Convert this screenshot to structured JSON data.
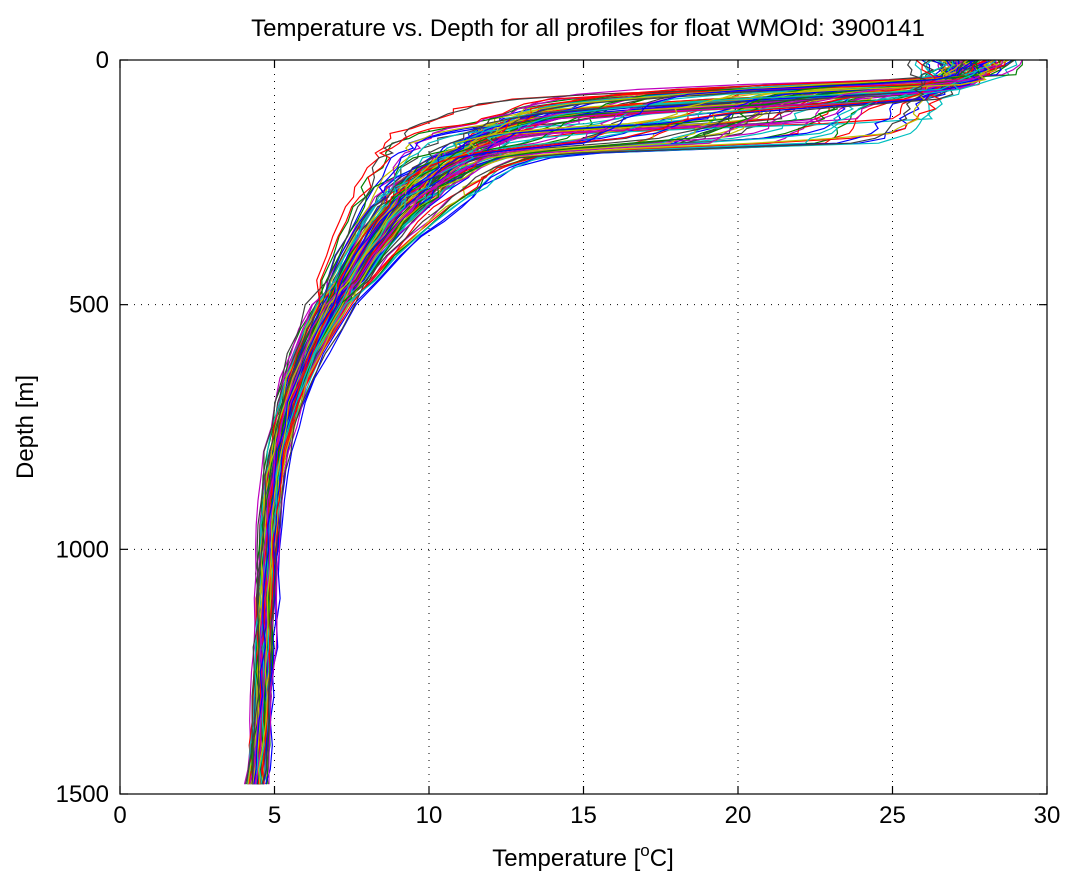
{
  "chart_data": {
    "type": "line",
    "title": "Temperature vs. Depth for all profiles for float WMOId: 3900141",
    "xlabel": "Temperature [",
    "xlabel_sup": "o",
    "xlabel_end": "C]",
    "ylabel": "Depth [m]",
    "xlim": [
      0,
      30
    ],
    "ylim": [
      0,
      1500
    ],
    "y_reversed": true,
    "grid": true,
    "x_ticks": [
      "0",
      "5",
      "10",
      "15",
      "20",
      "25",
      "30"
    ],
    "y_ticks": [
      "0",
      "500",
      "1000",
      "1500"
    ],
    "profile_count": 120,
    "depths": [
      0,
      10,
      20,
      30,
      40,
      50,
      60,
      70,
      80,
      90,
      100,
      110,
      120,
      130,
      140,
      150,
      160,
      170,
      180,
      190,
      200,
      220,
      240,
      260,
      280,
      300,
      330,
      360,
      400,
      450,
      500,
      550,
      600,
      650,
      700,
      750,
      800,
      850,
      900,
      950,
      1000,
      1050,
      1100,
      1150,
      1200,
      1250,
      1300,
      1350,
      1400,
      1450,
      1480
    ],
    "series": [
      {
        "temperature": [
          28.6,
          28.5,
          28.3,
          28.0,
          25.0,
          20.0,
          16.5,
          14.5,
          13.8,
          13.3,
          13.0,
          12.8,
          12.5,
          12.3,
          12.0,
          11.8,
          11.6,
          11.4,
          11.2,
          11.0,
          10.8,
          10.3,
          9.9,
          9.6,
          9.3,
          9.0,
          8.6,
          8.3,
          7.9,
          7.4,
          6.9,
          6.5,
          6.1,
          5.8,
          5.5,
          5.3,
          5.1,
          5.0,
          4.9,
          4.85,
          4.8,
          4.78,
          4.76,
          4.74,
          4.72,
          4.7,
          4.68,
          4.66,
          4.62,
          4.58,
          4.55
        ]
      },
      {
        "temperature": [
          27.6,
          27.5,
          27.4,
          27.3,
          27.2,
          27.0,
          26.5,
          25.0,
          21.0,
          17.0,
          14.5,
          13.5,
          13.0,
          12.7,
          12.4,
          12.2,
          12.0,
          11.8,
          11.6,
          11.4,
          11.2,
          10.7,
          10.2,
          9.8,
          9.5,
          9.2,
          8.8,
          8.4,
          8.0,
          7.5,
          7.0,
          6.6,
          6.2,
          5.9,
          5.6,
          5.4,
          5.2,
          5.05,
          4.95,
          4.9,
          4.85,
          4.82,
          4.8,
          4.78,
          4.75,
          4.72,
          4.7,
          4.68,
          4.64,
          4.6,
          4.57
        ]
      },
      {
        "temperature": [
          27.4,
          27.4,
          27.3,
          27.3,
          27.3,
          27.3,
          27.2,
          27.2,
          27.1,
          27.0,
          26.9,
          26.8,
          26.5,
          24.0,
          19.0,
          15.0,
          13.5,
          13.0,
          12.6,
          12.3,
          12.0,
          11.4,
          10.9,
          10.4,
          10.0,
          9.7,
          9.2,
          8.8,
          8.3,
          7.8,
          7.3,
          6.8,
          6.4,
          6.0,
          5.7,
          5.5,
          5.3,
          5.15,
          5.05,
          4.98,
          4.92,
          4.88,
          4.85,
          4.82,
          4.79,
          4.76,
          4.73,
          4.7,
          4.66,
          4.62,
          4.6
        ]
      },
      {
        "temperature": [
          27.0,
          27.0,
          27.0,
          26.9,
          26.9,
          26.9,
          26.8,
          26.8,
          26.8,
          26.7,
          26.7,
          26.6,
          26.5,
          26.3,
          26.0,
          25.5,
          24.0,
          21.0,
          17.5,
          14.5,
          13.0,
          12.0,
          11.4,
          10.8,
          10.3,
          9.9,
          9.4,
          9.0,
          8.5,
          8.0,
          7.4,
          6.9,
          6.5,
          6.1,
          5.8,
          5.55,
          5.35,
          5.2,
          5.1,
          5.0,
          4.95,
          4.9,
          4.86,
          4.82,
          4.78,
          4.75,
          4.72,
          4.68,
          4.62,
          4.56,
          4.52
        ]
      },
      {
        "temperature": [
          26.5,
          26.5,
          26.4,
          26.4,
          26.3,
          26.2,
          26.1,
          25.8,
          25.0,
          22.0,
          18.0,
          15.0,
          13.2,
          12.4,
          11.8,
          11.2,
          10.8,
          10.4,
          10.0,
          9.7,
          9.4,
          9.0,
          8.7,
          8.4,
          8.2,
          8.0,
          7.7,
          7.4,
          7.1,
          6.7,
          6.3,
          5.9,
          5.6,
          5.35,
          5.15,
          5.0,
          4.9,
          4.8,
          4.72,
          4.66,
          4.62,
          4.6,
          4.58,
          4.55,
          4.52,
          4.49,
          4.46,
          4.42,
          4.38,
          4.32,
          4.28
        ]
      },
      {
        "temperature": [
          28.0,
          28.0,
          27.9,
          27.8,
          27.6,
          27.3,
          26.5,
          23.0,
          18.0,
          15.5,
          14.5,
          14.0,
          13.6,
          13.2,
          12.9,
          12.6,
          12.4,
          12.2,
          12.0,
          11.8,
          11.6,
          11.1,
          10.6,
          10.2,
          9.8,
          9.5,
          9.1,
          8.7,
          8.2,
          7.7,
          7.2,
          6.8,
          6.3,
          6.0,
          5.7,
          5.45,
          5.25,
          5.1,
          5.0,
          4.93,
          4.88,
          4.84,
          4.81,
          4.78,
          4.75,
          4.72,
          4.69,
          4.66,
          4.62,
          4.58,
          4.54
        ]
      },
      {
        "temperature": [
          26.8,
          26.8,
          26.7,
          26.7,
          26.6,
          26.5,
          26.4,
          26.3,
          26.0,
          25.0,
          21.0,
          16.5,
          14.0,
          13.0,
          12.5,
          12.1,
          11.7,
          11.4,
          11.1,
          10.8,
          10.5,
          9.9,
          9.4,
          9.0,
          8.7,
          8.4,
          8.0,
          7.7,
          7.3,
          6.9,
          6.5,
          6.1,
          5.8,
          5.5,
          5.3,
          5.12,
          4.98,
          4.87,
          4.79,
          4.73,
          4.69,
          4.66,
          4.63,
          4.6,
          4.57,
          4.54,
          4.5,
          4.46,
          4.4,
          4.34,
          4.3
        ]
      },
      {
        "temperature": [
          27.9,
          27.8,
          27.6,
          27.5,
          27.3,
          26.0,
          20.0,
          15.0,
          12.5,
          11.5,
          10.8,
          10.3,
          9.9,
          9.6,
          9.3,
          9.1,
          8.9,
          8.7,
          8.6,
          8.5,
          8.4,
          8.2,
          8.0,
          7.9,
          7.8,
          7.6,
          7.4,
          7.2,
          6.9,
          6.6,
          6.2,
          5.9,
          5.6,
          5.35,
          5.15,
          5.0,
          4.88,
          4.78,
          4.7,
          4.65,
          4.62,
          4.6,
          4.58,
          4.56,
          4.53,
          4.5,
          4.46,
          4.42,
          4.36,
          4.3,
          4.25
        ]
      },
      {
        "temperature": [
          26.6,
          26.6,
          26.6,
          26.5,
          26.5,
          26.4,
          26.4,
          26.3,
          26.3,
          26.2,
          26.1,
          26.0,
          25.9,
          25.8,
          25.7,
          25.5,
          25.2,
          24.5,
          20.0,
          15.5,
          13.5,
          12.5,
          12.0,
          11.6,
          11.2,
          10.8,
          10.2,
          9.6,
          8.9,
          8.2,
          7.5,
          7.0,
          6.5,
          6.1,
          5.8,
          5.55,
          5.35,
          5.2,
          5.1,
          5.02,
          4.96,
          4.92,
          4.88,
          4.84,
          4.8,
          4.76,
          4.72,
          4.68,
          4.63,
          4.58,
          4.55
        ]
      },
      {
        "temperature": [
          29.0,
          28.9,
          28.6,
          28.2,
          27.5,
          24.0,
          19.0,
          16.0,
          14.8,
          14.2,
          13.8,
          13.4,
          13.1,
          12.8,
          12.5,
          12.2,
          11.9,
          11.6,
          11.3,
          11.0,
          10.7,
          10.1,
          9.6,
          9.2,
          8.9,
          8.6,
          8.2,
          7.9,
          7.5,
          7.1,
          6.7,
          6.3,
          5.95,
          5.65,
          5.42,
          5.25,
          5.1,
          4.98,
          4.89,
          4.82,
          4.77,
          4.74,
          4.71,
          4.68,
          4.65,
          4.62,
          4.59,
          4.55,
          4.5,
          4.45,
          4.41
        ]
      }
    ]
  }
}
